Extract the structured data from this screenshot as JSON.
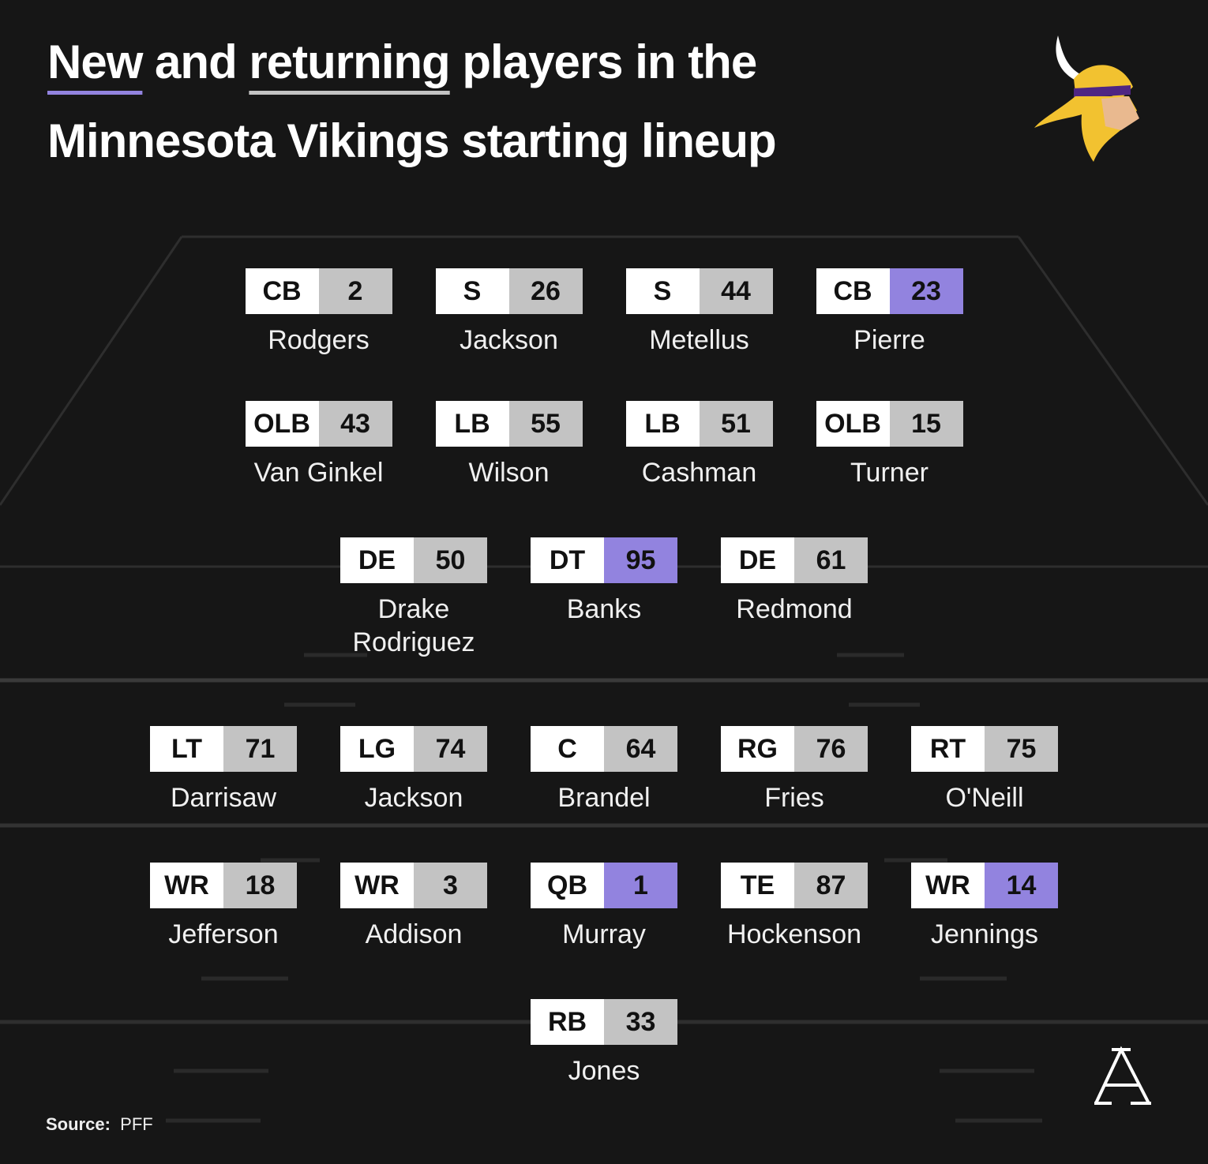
{
  "header": {
    "title_line1": [
      {
        "text": "New",
        "underline": "new"
      },
      {
        "text": " and "
      },
      {
        "text": "returning",
        "underline": "returning"
      },
      {
        "text": " players in the"
      }
    ],
    "title_line2": "Minnesota Vikings starting lineup"
  },
  "colors": {
    "new": "#9283df",
    "returning": "#c3c3c3"
  },
  "lineup": {
    "rows": [
      {
        "players": [
          {
            "position": "CB",
            "number": "2",
            "name": "Rodgers",
            "status": "returning"
          },
          {
            "position": "S",
            "number": "26",
            "name": "Jackson",
            "status": "returning"
          },
          {
            "position": "S",
            "number": "44",
            "name": "Metellus",
            "status": "returning"
          },
          {
            "position": "CB",
            "number": "23",
            "name": "Pierre",
            "status": "new"
          }
        ]
      },
      {
        "players": [
          {
            "position": "OLB",
            "number": "43",
            "name": "Van Ginkel",
            "status": "returning"
          },
          {
            "position": "LB",
            "number": "55",
            "name": "Wilson",
            "status": "returning"
          },
          {
            "position": "LB",
            "number": "51",
            "name": "Cashman",
            "status": "returning"
          },
          {
            "position": "OLB",
            "number": "15",
            "name": "Turner",
            "status": "returning"
          }
        ]
      },
      {
        "players": [
          {
            "position": "DE",
            "number": "50",
            "name": "Drake Rodriguez",
            "status": "returning"
          },
          {
            "position": "DT",
            "number": "95",
            "name": "Banks",
            "status": "new"
          },
          {
            "position": "DE",
            "number": "61",
            "name": "Redmond",
            "status": "returning"
          }
        ]
      },
      {
        "players": [
          {
            "position": "LT",
            "number": "71",
            "name": "Darrisaw",
            "status": "returning"
          },
          {
            "position": "LG",
            "number": "74",
            "name": "Jackson",
            "status": "returning"
          },
          {
            "position": "C",
            "number": "64",
            "name": "Brandel",
            "status": "returning"
          },
          {
            "position": "RG",
            "number": "76",
            "name": "Fries",
            "status": "returning"
          },
          {
            "position": "RT",
            "number": "75",
            "name": "O'Neill",
            "status": "returning"
          }
        ]
      },
      {
        "players": [
          {
            "position": "WR",
            "number": "18",
            "name": "Jefferson",
            "status": "returning"
          },
          {
            "position": "WR",
            "number": "3",
            "name": "Addison",
            "status": "returning"
          },
          {
            "position": "QB",
            "number": "1",
            "name": "Murray",
            "status": "new"
          },
          {
            "position": "TE",
            "number": "87",
            "name": "Hockenson",
            "status": "returning"
          },
          {
            "position": "WR",
            "number": "14",
            "name": "Jennings",
            "status": "new"
          }
        ]
      },
      {
        "players": [
          {
            "position": "RB",
            "number": "33",
            "name": "Jones",
            "status": "returning"
          }
        ]
      }
    ]
  },
  "footer": {
    "source_label": "Source:",
    "source": "PFF"
  }
}
